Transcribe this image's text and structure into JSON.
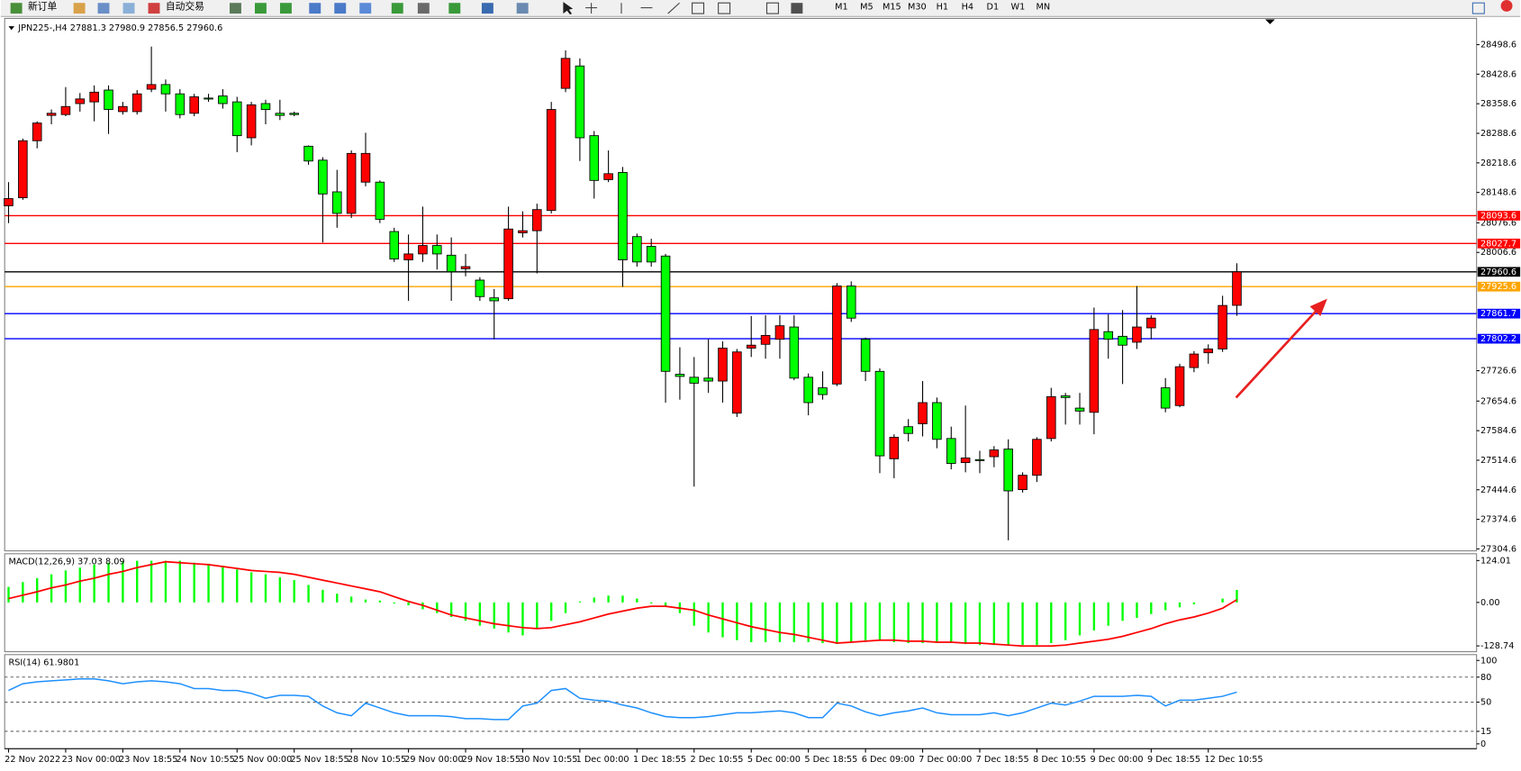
{
  "toolbar": {
    "buttons": [
      "新订单",
      "自动交易"
    ],
    "timeframes": [
      "M1",
      "M5",
      "M15",
      "M30",
      "H1",
      "H4",
      "D1",
      "W1",
      "MN"
    ]
  },
  "chart_data": [
    {
      "type": "candlestick",
      "title": "JPN225-,H4  27881.3 27980.9 27856.5 27960.6",
      "categories": [
        "22 Nov 2022",
        null,
        null,
        null,
        "23 Nov 00:00",
        null,
        null,
        null,
        "23 Nov 18:55",
        null,
        null,
        null,
        "24 Nov 10:55",
        null,
        null,
        null,
        "25 Nov 00:00",
        null,
        null,
        null,
        "25 Nov 18:55",
        null,
        null,
        null,
        "28 Nov 10:55",
        null,
        null,
        null,
        "29 Nov 00:00",
        null,
        null,
        null,
        "29 Nov 18:55",
        null,
        null,
        null,
        "30 Nov 10:55",
        null,
        null,
        null,
        "1 Dec 00:00",
        null,
        null,
        null,
        "1 Dec 18:55",
        null,
        null,
        null,
        "2 Dec 10:55",
        null,
        null,
        null,
        "5 Dec 00:00",
        null,
        null,
        null,
        "5 Dec 18:55",
        null,
        null,
        null,
        "6 Dec 09:00",
        null,
        null,
        null,
        "7 Dec 00:00",
        null,
        null,
        null,
        "7 Dec 18:55",
        null,
        null,
        null,
        "8 Dec 10:55",
        null,
        null,
        null,
        "9 Dec 00:00",
        null,
        null,
        null,
        "9 Dec 18:55",
        null,
        null,
        null,
        "12 Dec 10:55",
        null,
        null
      ],
      "open": [
        28117,
        28136,
        28271,
        28331,
        28333,
        28359,
        28363,
        28391,
        28340,
        28340,
        28393,
        28404,
        28382,
        28336,
        28372,
        28377,
        28363,
        28278,
        28359,
        28336,
        28336,
        28258,
        28225,
        28150,
        28099,
        28173,
        28173,
        28056,
        27989,
        28003,
        28023,
        28000,
        27968,
        27941,
        27899,
        27897,
        28053,
        28058,
        28106,
        28395,
        28448,
        28283,
        28179,
        28196,
        28044,
        28021,
        27998,
        27718,
        27711,
        27709,
        27702,
        27626,
        27780,
        27789,
        27801,
        27830,
        27711,
        27686,
        27695,
        27927,
        27801,
        27725,
        27518,
        27594,
        27601,
        27651,
        27566,
        27509,
        27516,
        27523,
        27541,
        27445,
        27479,
        27566,
        27667,
        27638,
        27628,
        27819,
        27808,
        27794,
        27828,
        27686,
        27644,
        27734,
        27769,
        27778,
        27881.3
      ],
      "high": [
        28173,
        28276,
        28317,
        28345,
        28398,
        28384,
        28402,
        28402,
        28363,
        28391,
        28494,
        28416,
        28393,
        28382,
        28382,
        28393,
        28375,
        28363,
        28368,
        28368,
        28340,
        28260,
        28232,
        28202,
        28248,
        28290,
        28177,
        28065,
        28049,
        28115,
        28049,
        28042,
        28003,
        27948,
        27920,
        28115,
        28104,
        28122,
        28363,
        28485,
        28466,
        28294,
        28248,
        28209,
        28051,
        28039,
        28003,
        27782,
        27759,
        27801,
        27796,
        27778,
        27856,
        27858,
        27858,
        27858,
        27720,
        27725,
        27934,
        27938,
        27805,
        27732,
        27576,
        27612,
        27702,
        27663,
        27594,
        27644,
        27537,
        27548,
        27564,
        27486,
        27569,
        27686,
        27674,
        27674,
        27876,
        27860,
        27870,
        27927,
        27858,
        27709,
        27743,
        27773,
        27789,
        27904,
        27980.9
      ],
      "low": [
        28076,
        28131,
        28253,
        28310,
        28329,
        28340,
        28317,
        28287,
        28333,
        28333,
        28386,
        28340,
        28324,
        28329,
        28363,
        28347,
        28244,
        28260,
        28310,
        28320,
        28329,
        28214,
        28030,
        28065,
        28088,
        28163,
        28076,
        27984,
        27892,
        27984,
        27966,
        27892,
        27950,
        27892,
        27801,
        27892,
        28042,
        27957,
        28099,
        28386,
        28223,
        28134,
        28173,
        27925,
        27973,
        27973,
        27651,
        27658,
        27452,
        27674,
        27651,
        27617,
        27759,
        27755,
        27755,
        27704,
        27621,
        27658,
        27690,
        27842,
        27702,
        27484,
        27472,
        27559,
        27571,
        27543,
        27493,
        27486,
        27484,
        27498,
        27325,
        27438,
        27463,
        27559,
        27599,
        27599,
        27576,
        27755,
        27695,
        27778,
        27801,
        27628,
        27640,
        27723,
        27743,
        27771,
        27856.5
      ],
      "close": [
        28134,
        28271,
        28313,
        28336,
        28352,
        28370,
        28386,
        28345,
        28352,
        28382,
        28404,
        28382,
        28333,
        28375,
        28370,
        28359,
        28283,
        28356,
        28345,
        28331,
        28333,
        28223,
        28145,
        28099,
        28241,
        28241,
        28085,
        27991,
        28003,
        28023,
        28003,
        27961,
        27973,
        27902,
        27892,
        28062,
        28058,
        28108,
        28345,
        28466,
        28278,
        28177,
        28193,
        27989,
        27984,
        27984,
        27725,
        27713,
        27697,
        27702,
        27780,
        27771,
        27787,
        27810,
        27833,
        27709,
        27651,
        27670,
        27927,
        27851,
        27725,
        27525,
        27569,
        27578,
        27651,
        27564,
        27507,
        27520,
        27514,
        27539,
        27442,
        27479,
        27564,
        27665,
        27663,
        27631,
        27824,
        27801,
        27787,
        27830,
        27851,
        27638,
        27736,
        27766,
        27778,
        27881,
        27960.6
      ],
      "up_color": "#ff0000",
      "down_color": "#00ff00",
      "ylim": [
        27304.6,
        28498.6
      ],
      "yticks": [
        28498.6,
        28428.6,
        28358.6,
        28288.6,
        28218.6,
        28148.6,
        28076.6,
        28006.6,
        27726.6,
        27654.6,
        27584.6,
        27514.6,
        27444.6,
        27374.6,
        27304.6
      ],
      "hlines": [
        {
          "value": 28093.6,
          "color": "#ff0000"
        },
        {
          "value": 28027.7,
          "color": "#ff0000"
        },
        {
          "value": 27960.6,
          "color": "#000000"
        },
        {
          "value": 27925.6,
          "color": "#ffa500"
        },
        {
          "value": 27861.7,
          "color": "#0000ff"
        },
        {
          "value": 27802.2,
          "color": "#0000ff"
        }
      ]
    },
    {
      "type": "macd",
      "title": "MACD(12,26,9) 37.03 8.09",
      "series": [
        {
          "color": "#00ff00",
          "values": [
            45.9,
            60.3,
            71.8,
            83.2,
            94.7,
            103.3,
            111.9,
            117.7,
            120.5,
            123.4,
            123.4,
            123.4,
            123.4,
            117.7,
            114.8,
            109.1,
            97.6,
            89.0,
            83.2,
            74.6,
            66.0,
            51.7,
            37.3,
            25.8,
            17.2,
            8.6,
            5.7,
            -2.9,
            -8.6,
            -20.1,
            -31.6,
            -43.1,
            -54.5,
            -68.9,
            -77.5,
            -89.0,
            -97.6,
            -77.5,
            -54.5,
            -31.6,
            2.9,
            14.4,
            20.1,
            20.1,
            11.5,
            -2.9,
            -11.5,
            -31.6,
            -68.9,
            -89.0,
            -103.3,
            -111.9,
            -117.7,
            -117.7,
            -117.7,
            -117.7,
            -117.7,
            -120.5,
            -123.4,
            -117.7,
            -111.9,
            -111.9,
            -117.7,
            -120.5,
            -120.5,
            -120.5,
            -120.5,
            -123.4,
            -126.3,
            -126.3,
            -126.3,
            -126.3,
            -126.3,
            -120.5,
            -111.9,
            -97.6,
            -83.2,
            -68.9,
            -54.5,
            -45.9,
            -34.4,
            -23.0,
            -14.4,
            -5.7,
            0,
            11.5,
            37.03
          ]
        },
        {
          "color": "#ff0000",
          "values": [
            11.5,
            21.5,
            31.6,
            43.1,
            51.7,
            63.1,
            71.8,
            83.2,
            91.8,
            103.3,
            111.9,
            120.5,
            117.7,
            114.8,
            111.9,
            106.2,
            100.5,
            94.7,
            91.8,
            89.0,
            83.2,
            74.6,
            66.0,
            57.4,
            48.8,
            40.2,
            31.6,
            17.2,
            2.9,
            -8.6,
            -23.0,
            -37.3,
            -45.9,
            -54.5,
            -63.1,
            -68.9,
            -74.6,
            -77.5,
            -74.6,
            -66.0,
            -57.4,
            -45.9,
            -34.4,
            -25.8,
            -17.2,
            -11.5,
            -11.5,
            -17.2,
            -23.0,
            -37.3,
            -48.8,
            -60.3,
            -71.8,
            -80.4,
            -89.0,
            -94.7,
            -103.3,
            -111.9,
            -120.5,
            -117.7,
            -114.8,
            -111.9,
            -111.9,
            -114.8,
            -114.8,
            -117.7,
            -117.7,
            -120.5,
            -120.5,
            -123.4,
            -126.3,
            -129.2,
            -129.2,
            -129.2,
            -126.3,
            -120.5,
            -114.8,
            -109.1,
            -100.5,
            -89.0,
            -77.5,
            -63.1,
            -51.7,
            -43.1,
            -31.6,
            -17.2,
            8.09
          ]
        }
      ],
      "ylim": [
        -128.74,
        124.01
      ],
      "yticks": [
        124.01,
        {
          "value": 0,
          "label": "0.00"
        },
        -128.74
      ]
    },
    {
      "type": "line",
      "title": "RSI(14) 61.9801",
      "color": "#1e90ff",
      "values": [
        64.0,
        72.1,
        74.4,
        75.6,
        76.7,
        77.9,
        77.9,
        75.6,
        72.1,
        74.4,
        75.6,
        74.4,
        72.1,
        66.3,
        66.3,
        64.0,
        64.0,
        60.5,
        54.7,
        58.2,
        58.2,
        57.0,
        45.4,
        37.2,
        33.7,
        48.8,
        43.0,
        37.2,
        33.7,
        33.7,
        33.7,
        32.6,
        30.2,
        30.2,
        29.1,
        29.1,
        45.4,
        48.8,
        64.0,
        66.3,
        54.7,
        52.3,
        51.2,
        46.5,
        43.0,
        37.2,
        32.6,
        31.4,
        31.4,
        32.6,
        34.9,
        37.2,
        37.2,
        38.4,
        39.5,
        37.2,
        31.4,
        31.4,
        48.8,
        45.4,
        38.4,
        33.7,
        37.2,
        39.5,
        43.0,
        37.2,
        34.9,
        34.9,
        34.9,
        37.2,
        33.7,
        37.2,
        43.0,
        48.8,
        46.5,
        51.2,
        57.0,
        57.0,
        57.0,
        58.2,
        57.0,
        45.4,
        52.3,
        52.3,
        54.7,
        57.0,
        61.98
      ],
      "ylim": [
        0,
        100
      ],
      "yticks": [
        100,
        80,
        50,
        15,
        0
      ],
      "levels": [
        80,
        50,
        15
      ]
    }
  ]
}
